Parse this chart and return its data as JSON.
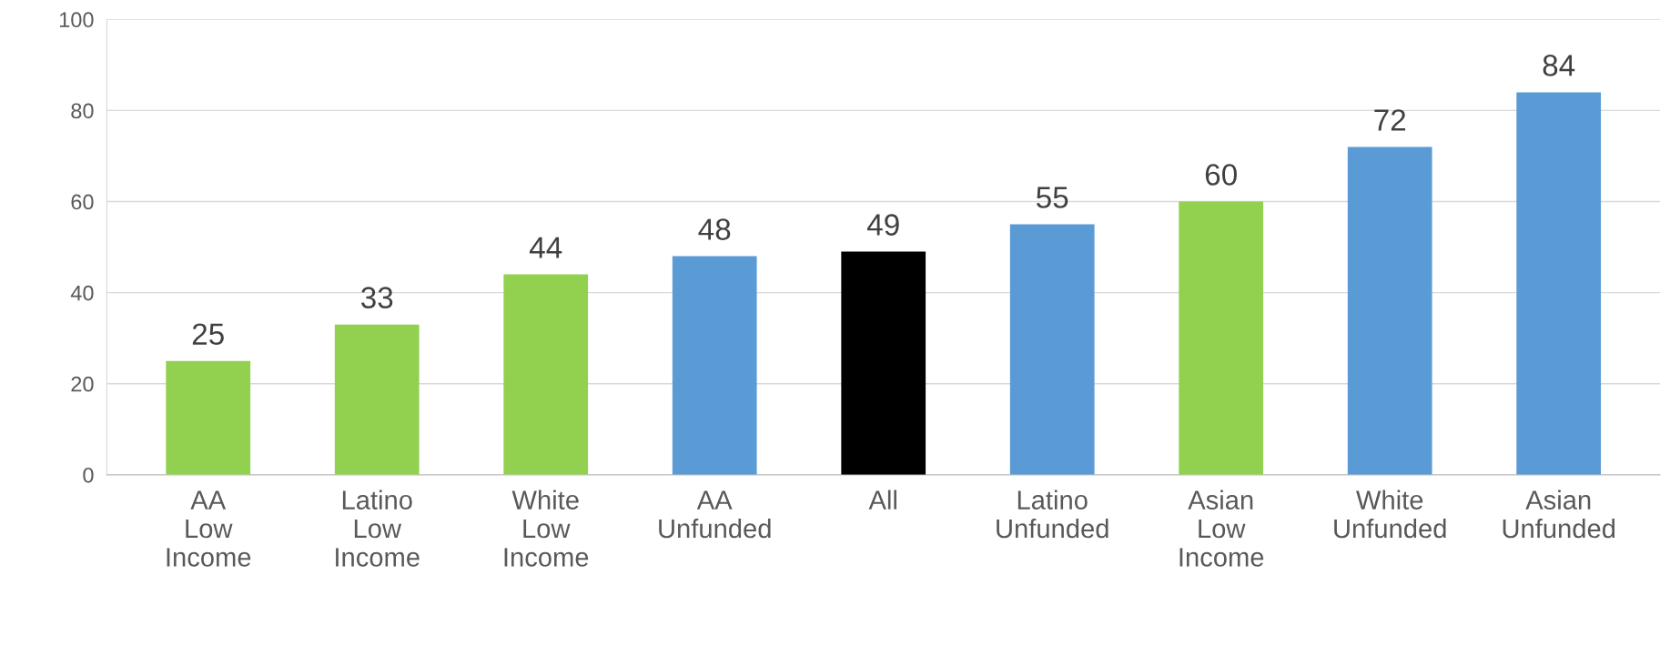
{
  "chart_data": {
    "type": "bar",
    "categories": [
      "AA\nLow\nIncome",
      "Latino\nLow\nIncome",
      "White\nLow\nIncome",
      "AA\nUnfunded",
      "All",
      "Latino\nUnfunded",
      "Asian\nLow\nIncome",
      "White\nUnfunded",
      "Asian\nUnfunded"
    ],
    "values": [
      25,
      33,
      44,
      48,
      49,
      55,
      60,
      72,
      84
    ],
    "colors": [
      "#92d050",
      "#92d050",
      "#92d050",
      "#5b9bd5",
      "#000000",
      "#5b9bd5",
      "#92d050",
      "#5b9bd5",
      "#5b9bd5"
    ],
    "ylim": [
      0,
      100
    ],
    "yticks": [
      0,
      20,
      40,
      60,
      80,
      100
    ],
    "grid": "y",
    "data_labels": true
  }
}
